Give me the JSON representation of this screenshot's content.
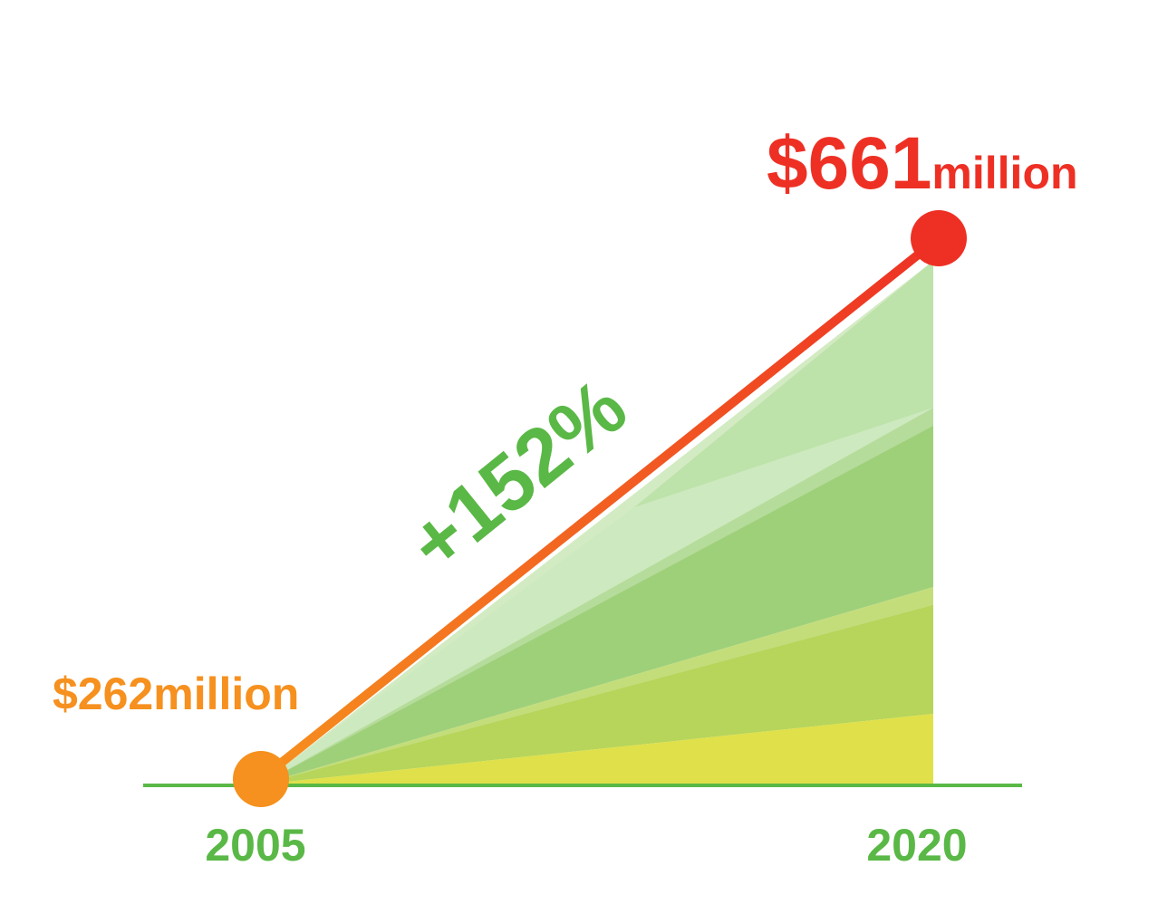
{
  "chart_data": {
    "type": "area",
    "title": "",
    "xlabel": "",
    "ylabel": "",
    "x": [
      "2005",
      "2020"
    ],
    "values": [
      262,
      661
    ],
    "unit": "million",
    "point_labels": [
      {
        "prefix": "$262",
        "suffix": "million"
      },
      {
        "prefix": "$661",
        "suffix": "million"
      }
    ],
    "annotation": "+152%",
    "colors": {
      "start_point": "#f6901e",
      "end_point": "#ee3024",
      "annotation": "#5ab846",
      "axis": "#5ab846",
      "fill_top": "#b9dea6",
      "fill_bottom": "#f0e64a"
    }
  }
}
